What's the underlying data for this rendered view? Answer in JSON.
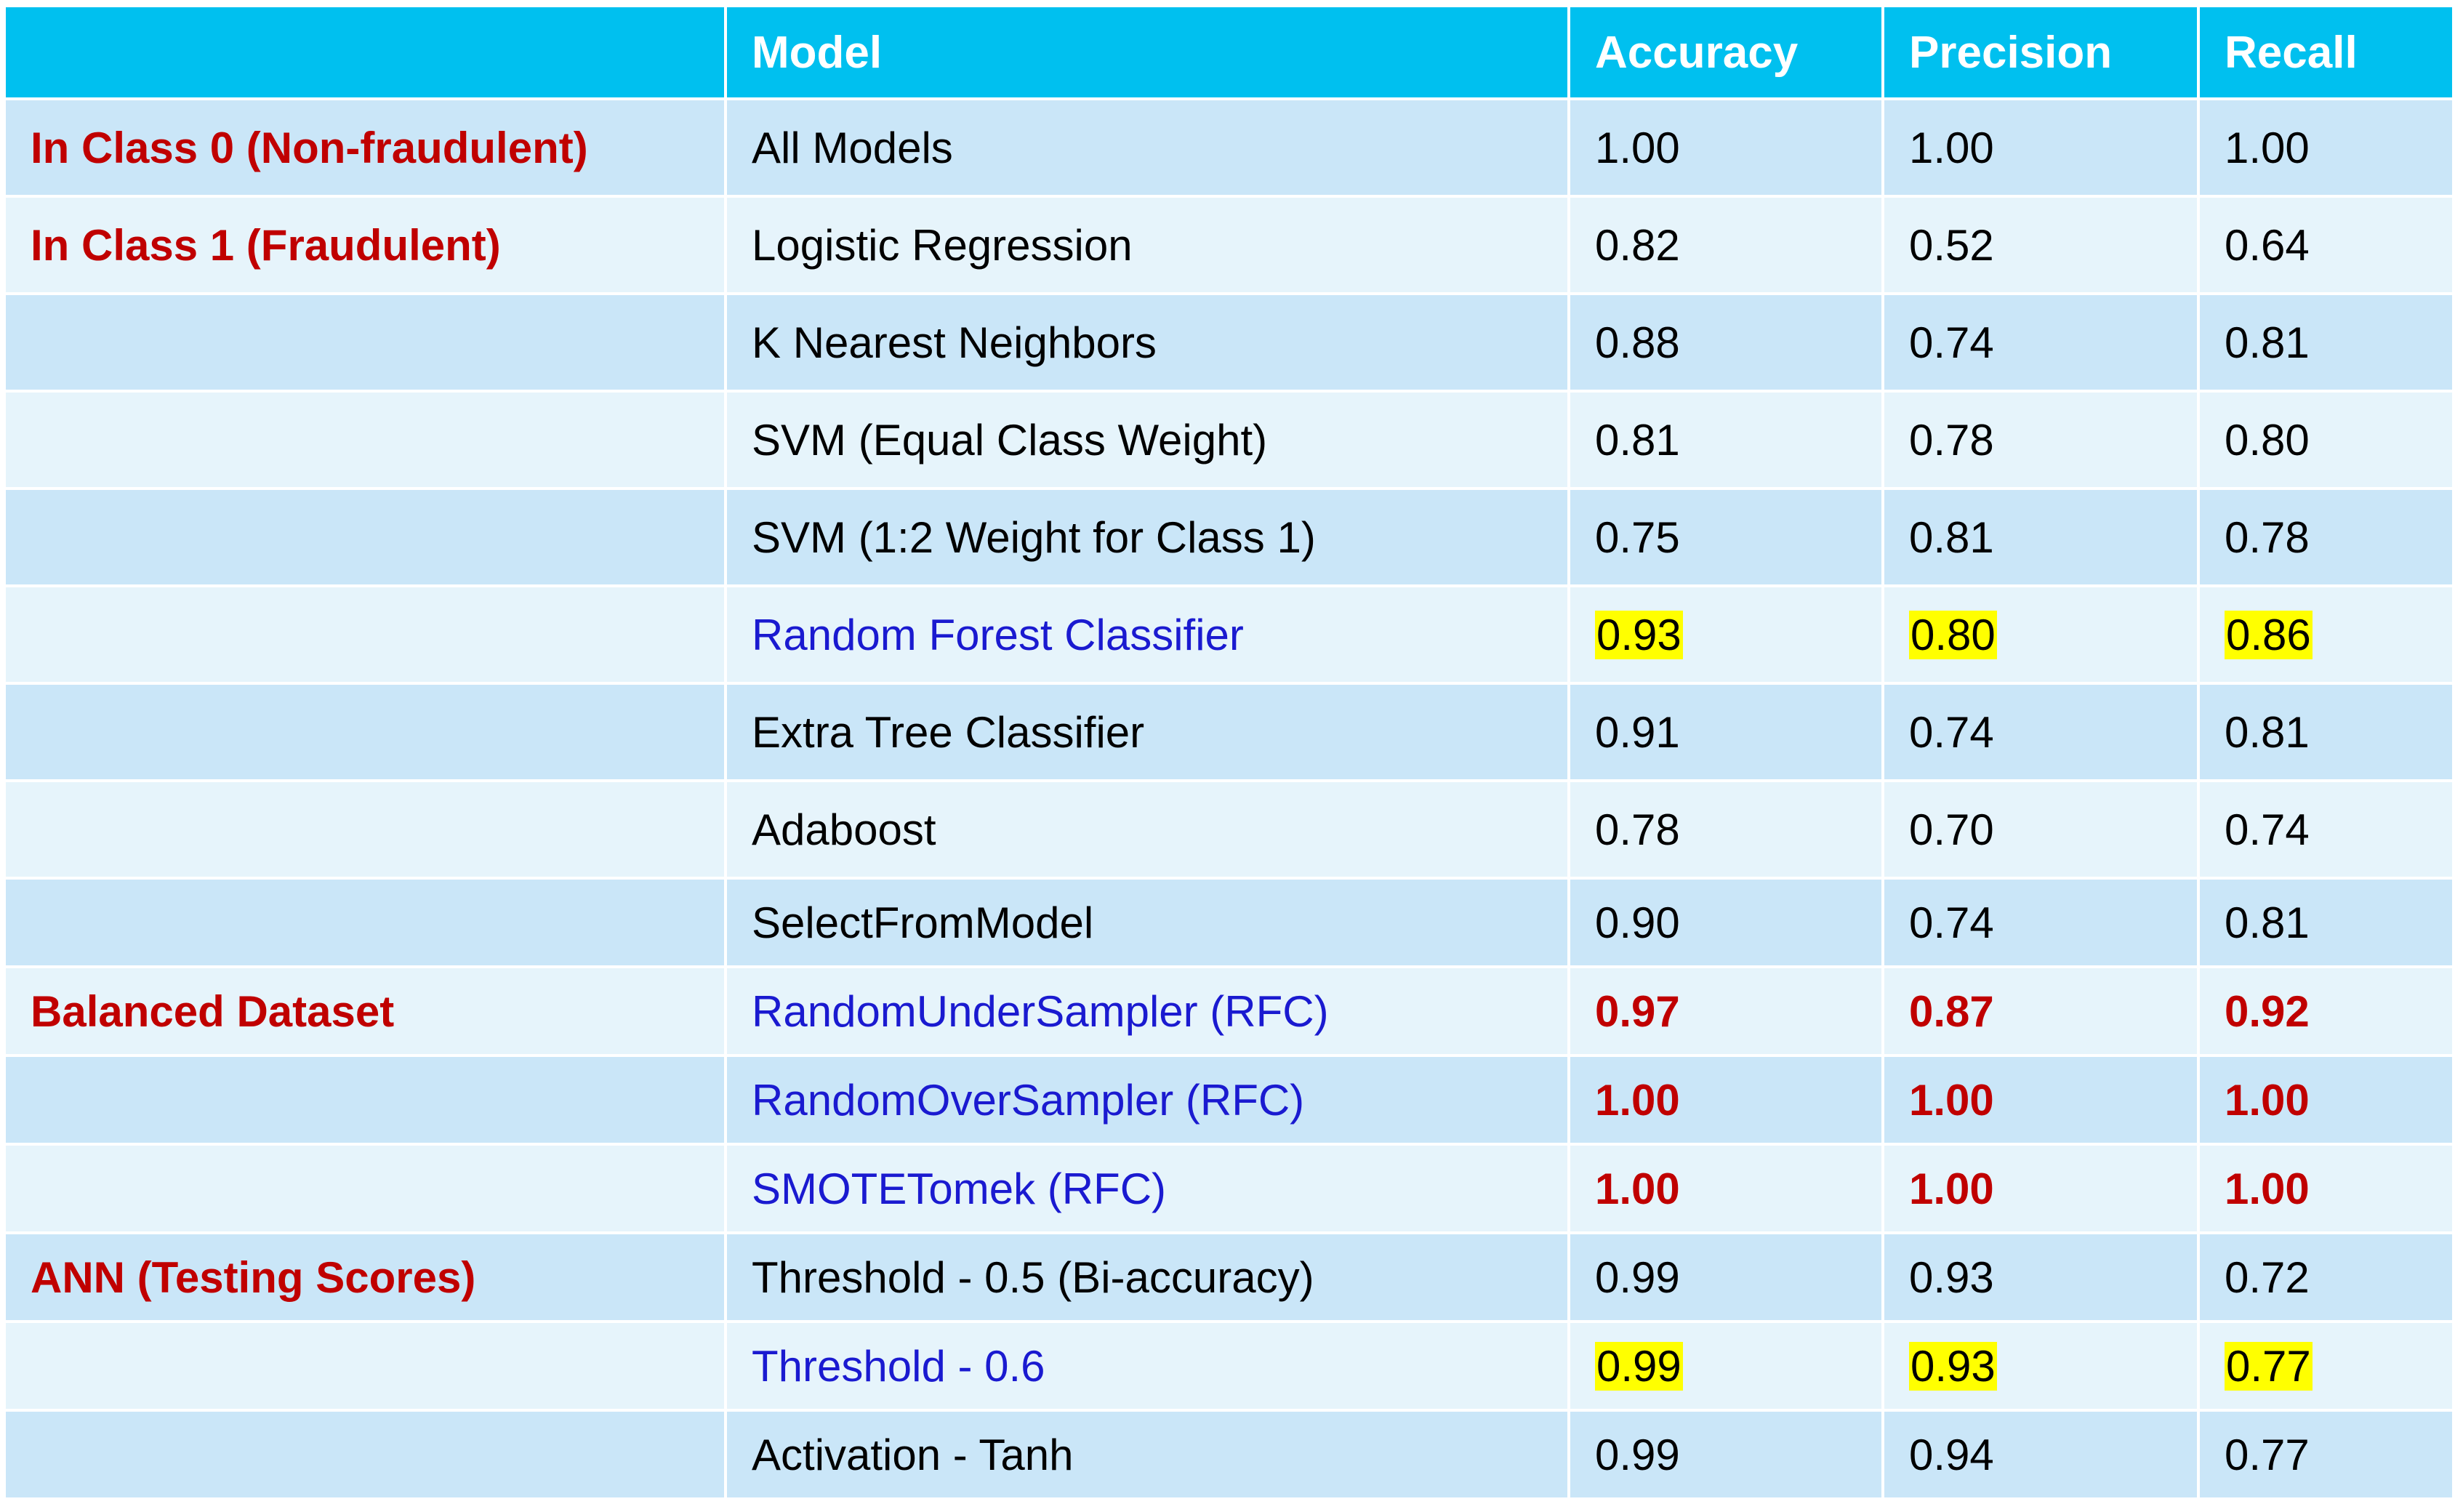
{
  "headers": [
    "",
    "Model",
    "Accuracy",
    "Precision",
    "Recall"
  ],
  "colors": {
    "header_bg": "#00c0ef",
    "row_dark": "#cae6f8",
    "row_light": "#e6f4fb",
    "section_text": "#c00000",
    "highlight_model": "#1a1ad0",
    "highlight_bg": "#ffff00"
  },
  "rows": [
    {
      "section": "In Class 0 (Non-fraudulent)",
      "model": "All Models",
      "accuracy": "1.00",
      "precision": "1.00",
      "recall": "1.00"
    },
    {
      "section": "In Class 1 (Fraudulent)",
      "model": "Logistic Regression",
      "accuracy": "0.82",
      "precision": "0.52",
      "recall": "0.64"
    },
    {
      "section": "",
      "model": "K Nearest Neighbors",
      "accuracy": "0.88",
      "precision": "0.74",
      "recall": "0.81"
    },
    {
      "section": "",
      "model": "SVM (Equal Class Weight)",
      "accuracy": "0.81",
      "precision": "0.78",
      "recall": "0.80"
    },
    {
      "section": "",
      "model": "SVM (1:2 Weight for Class 1)",
      "accuracy": "0.75",
      "precision": "0.81",
      "recall": "0.78"
    },
    {
      "section": "",
      "model": "Random Forest Classifier",
      "accuracy": "0.93",
      "precision": "0.80",
      "recall": "0.86",
      "model_blue": true,
      "highlight": true
    },
    {
      "section": "",
      "model": "Extra Tree Classifier",
      "accuracy": "0.91",
      "precision": "0.74",
      "recall": "0.81"
    },
    {
      "section": "",
      "model": "Adaboost",
      "accuracy": "0.78",
      "precision": "0.70",
      "recall": "0.74"
    },
    {
      "section": "",
      "model": "SelectFromModel",
      "accuracy": "0.90",
      "precision": "0.74",
      "recall": "0.81"
    },
    {
      "section": "Balanced Dataset",
      "model": "RandomUnderSampler (RFC)",
      "accuracy": "0.97",
      "precision": "0.87",
      "recall": "0.92",
      "model_blue": true,
      "values_bold": true
    },
    {
      "section": "",
      "model": "RandomOverSampler (RFC)",
      "accuracy": "1.00",
      "precision": "1.00",
      "recall": "1.00",
      "model_blue": true,
      "values_bold": true
    },
    {
      "section": "",
      "model": "SMOTETomek (RFC)",
      "accuracy": "1.00",
      "precision": "1.00",
      "recall": "1.00",
      "model_blue": true,
      "values_bold": true
    },
    {
      "section": "ANN (Testing Scores)",
      "model": "Threshold - 0.5 (Bi-accuracy)",
      "accuracy": "0.99",
      "precision": "0.93",
      "recall": "0.72"
    },
    {
      "section": "",
      "model": "Threshold - 0.6",
      "accuracy": "0.99",
      "precision": "0.93",
      "recall": "0.77",
      "model_blue": true,
      "highlight": true
    },
    {
      "section": "",
      "model": "Activation - Tanh",
      "accuracy": "0.99",
      "precision": "0.94",
      "recall": "0.77"
    }
  ]
}
